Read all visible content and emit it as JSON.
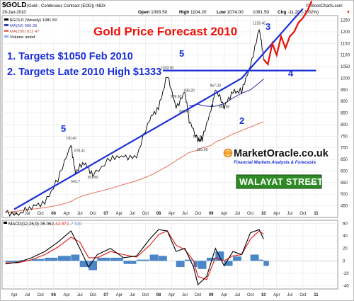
{
  "header": {
    "symbol": "$GOLD",
    "description": "(Gold - Continuous Contract (EOD)) INDX",
    "credit": "© StockCharts.com",
    "date": "29-Jan-2010",
    "open_label": "Open",
    "open": "1093.50",
    "high_label": "High",
    "high": "1104.20",
    "low_label": "Low",
    "low": "1074.00",
    "close": "1081.50",
    "chg_label": "Chg",
    "chg": "-11.20 (-1.02%)",
    "chg_arrow": "▼"
  },
  "legend": {
    "price": "$GOLD (Weekly) 1081.50",
    "ma50": "MA(50) 996.36",
    "ma200": "MA(200) 812.47",
    "volume": "Volume undef"
  },
  "macd_legend": {
    "label": "MACD(12,26,9)",
    "v1": "35.062,",
    "v2": "42.972,",
    "v3": "-7.910"
  },
  "annotations": {
    "title": "Gold Price Forecast 2010",
    "target1": "1. Targets $1050 Feb 2010",
    "target2": "2. Targets Late 2010 High $1333",
    "wave_5_left": "5",
    "wave_5_mid": "5",
    "wave_3": "3",
    "wave_4": "4",
    "wave_2": "2"
  },
  "branding": {
    "marketoracle": "MarketOracle.co.uk",
    "marketoracle_sub": "Financial Markets Analysis & Forecasts",
    "walayat": "WALAYAT STREET",
    "walayat_suffix": ".com"
  },
  "colors": {
    "price": "#000000",
    "ma50": "#3a3ab4",
    "ma200": "#e8786a",
    "trendline": "#1a2fd6",
    "forecast": "#e8140c",
    "macd": "#000000",
    "signal": "#e8140c",
    "histogram": "#4a86c8"
  },
  "chart_data": [
    {
      "type": "line",
      "x": [
        "2005-02",
        "2005-05",
        "2005-08",
        "2005-11",
        "2006-02",
        "2006-05",
        "2006-06",
        "2006-08",
        "2006-10",
        "2007-02",
        "2007-05",
        "2007-08",
        "2007-11",
        "2008-01",
        "2008-03",
        "2008-05",
        "2008-07",
        "2008-08",
        "2008-10",
        "2008-11",
        "2009-01",
        "2009-02",
        "2009-04",
        "2009-06",
        "2009-08",
        "2009-10",
        "2009-12",
        "2010-01"
      ],
      "series": [
        {
          "name": "$GOLD (Weekly) 1081.50",
          "values": [
            422,
            420,
            438,
            472,
            560,
            710,
            600,
            630,
            590,
            650,
            660,
            668,
            820,
            880,
            1010,
            870,
            950,
            810,
            740,
            735,
            860,
            960,
            870,
            950,
            940,
            1050,
            1220,
            1081.5
          ]
        },
        {
          "name": "MA(50) 996.36",
          "values": [
            null,
            null,
            null,
            null,
            null,
            null,
            null,
            null,
            null,
            null,
            null,
            null,
            null,
            null,
            null,
            null,
            null,
            880,
            888,
            882,
            878,
            880,
            890,
            915,
            935,
            950,
            980,
            996.36
          ]
        },
        {
          "name": "MA(200) 812.47",
          "values": [
            420,
            428,
            435,
            442,
            452,
            468,
            480,
            495,
            505,
            525,
            542,
            558,
            580,
            600,
            620,
            645,
            668,
            680,
            690,
            700,
            710,
            725,
            740,
            760,
            775,
            790,
            805,
            812.47
          ]
        }
      ],
      "forecast": {
        "x": [
          "2010-01",
          "2010-02",
          "2010-03",
          "2010-04",
          "2010-05",
          "2010-06",
          "2010-07",
          "2010-08",
          "2010-09",
          "2010-10",
          "2010-11",
          "2010-12"
        ],
        "values": [
          1081.5,
          1060,
          1150,
          1100,
          1180,
          1130,
          1180,
          1200,
          1240,
          1260,
          1290,
          1333
        ]
      },
      "trendline": {
        "x": [
          "2005-04",
          "2009-08",
          "2010-10"
        ],
        "values": [
          435,
          1000,
          1300
        ]
      },
      "resistance": {
        "x": [
          "2008-02",
          "2011-01"
        ],
        "values": [
          1033,
          1033
        ]
      },
      "price_labels": [
        {
          "x": "2006-05",
          "y": 730.4,
          "label": "730.40"
        },
        {
          "x": "2006-07",
          "y": 676.41,
          "label": "676.41"
        },
        {
          "x": "2006-06",
          "y": 543.7,
          "label": "543.7"
        },
        {
          "x": "2006-10",
          "y": 561.8,
          "label": "561.80"
        },
        {
          "x": "2008-03",
          "y": 1033.9,
          "label": "1033.90"
        },
        {
          "x": "2008-05",
          "y": 909.6,
          "label": "909.60"
        },
        {
          "x": "2008-08",
          "y": 936.2,
          "label": "936.20"
        },
        {
          "x": "2008-07",
          "y": 846.4,
          "label": "846.40"
        },
        {
          "x": "2008-10",
          "y": 735.8,
          "label": "735.80"
        },
        {
          "x": "2008-11",
          "y": 681,
          "label": "681.00"
        },
        {
          "x": "2009-02",
          "y": 957.2,
          "label": "957.20"
        },
        {
          "x": "2009-04",
          "y": 865.9,
          "label": "865.90"
        },
        {
          "x": "2009-12",
          "y": 1226.4,
          "label": "1226.40"
        }
      ],
      "y_ticks": [
        450,
        500,
        550,
        600,
        650,
        700,
        750,
        800,
        850,
        900,
        950,
        1000,
        1050,
        1100,
        1150,
        1200,
        1250
      ],
      "ylim": [
        400,
        1270
      ],
      "x_ticks": [
        "Apr",
        "Jul",
        "Oct",
        "06",
        "Apr",
        "Jul",
        "Oct",
        "07",
        "Apr",
        "Jul",
        "Oct",
        "08",
        "Apr",
        "Jul",
        "Oct",
        "09",
        "Apr",
        "Jul",
        "Oct",
        "10",
        "Apr",
        "Jul",
        "Oct",
        "11"
      ],
      "title": "Gold Price Forecast 2010"
    },
    {
      "type": "line",
      "x": [
        "2005-02",
        "2005-05",
        "2005-08",
        "2005-11",
        "2006-02",
        "2006-05",
        "2006-07",
        "2006-09",
        "2006-11",
        "2007-02",
        "2007-05",
        "2007-08",
        "2007-11",
        "2008-01",
        "2008-03",
        "2008-05",
        "2008-07",
        "2008-09",
        "2008-10",
        "2008-12",
        "2009-02",
        "2009-04",
        "2009-06",
        "2009-08",
        "2009-10",
        "2009-12",
        "2010-01"
      ],
      "series": [
        {
          "name": "MACD(12,26,9)",
          "values": [
            -5,
            -2,
            5,
            15,
            30,
            48,
            20,
            -10,
            10,
            20,
            5,
            8,
            35,
            50,
            48,
            15,
            20,
            -10,
            -38,
            -25,
            20,
            -8,
            15,
            10,
            45,
            50,
            35
          ]
        },
        {
          "name": "signal",
          "values": [
            -3,
            -3,
            2,
            10,
            22,
            38,
            30,
            5,
            5,
            15,
            10,
            6,
            25,
            42,
            48,
            25,
            18,
            0,
            -25,
            -30,
            5,
            0,
            8,
            10,
            35,
            48,
            43
          ]
        }
      ],
      "histogram": [
        -2,
        1,
        3,
        5,
        8,
        10,
        -10,
        -15,
        5,
        5,
        -5,
        2,
        10,
        8,
        0,
        -10,
        2,
        -10,
        -13,
        5,
        15,
        -8,
        7,
        0,
        10,
        2,
        -8
      ],
      "y_ticks": [
        -40,
        -20,
        0,
        20,
        40,
        60
      ],
      "ylim": [
        -45,
        65
      ]
    }
  ]
}
